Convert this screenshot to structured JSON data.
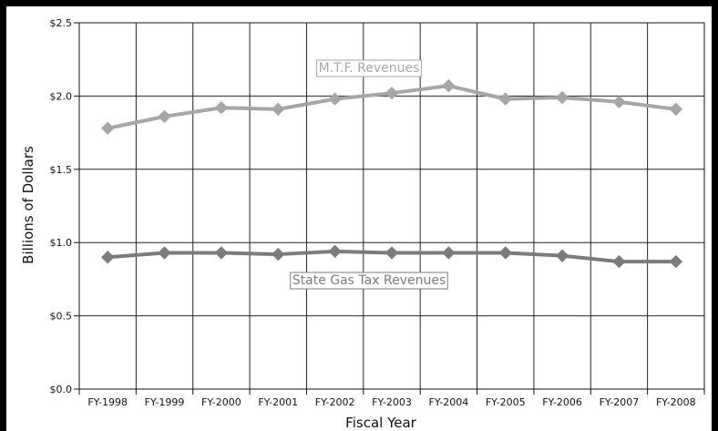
{
  "chart_data": {
    "type": "line",
    "title": "",
    "xlabel": "Fiscal Year",
    "ylabel": "Billions of Dollars",
    "categories": [
      "FY-1998",
      "FY-1999",
      "FY-2000",
      "FY-2001",
      "FY-2002",
      "FY-2003",
      "FY-2004",
      "FY-2005",
      "FY-2006",
      "FY-2007",
      "FY-2008"
    ],
    "y_tick_labels": [
      "$0.0",
      "$0.5",
      "$1.0",
      "$1.5",
      "$2.0",
      "$2.5"
    ],
    "y_ticks": [
      0,
      0.5,
      1.0,
      1.5,
      2.0,
      2.5
    ],
    "ylim": [
      0,
      2.5
    ],
    "grid": true,
    "series": [
      {
        "name": "M.T.F. Revenues",
        "color": "#a6a6a6",
        "values": [
          1.78,
          1.86,
          1.92,
          1.91,
          1.98,
          2.02,
          2.07,
          1.98,
          1.99,
          1.96,
          1.91
        ]
      },
      {
        "name": "State Gas Tax Revenues",
        "color": "#7b7b7b",
        "values": [
          0.9,
          0.93,
          0.93,
          0.92,
          0.94,
          0.93,
          0.93,
          0.93,
          0.91,
          0.87,
          0.87
        ]
      }
    ]
  }
}
